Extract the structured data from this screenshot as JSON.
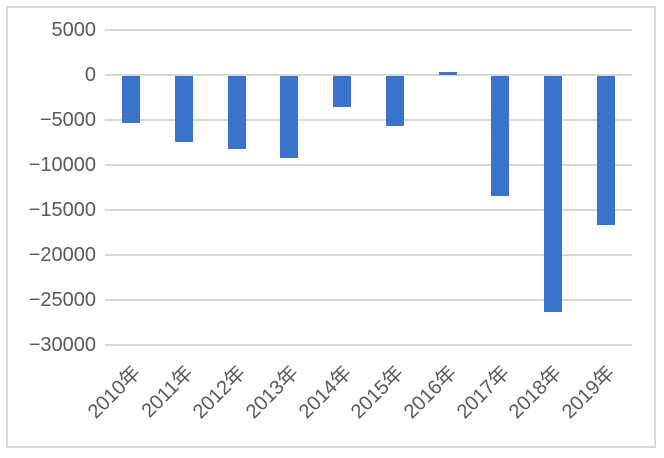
{
  "chart": {
    "title": "",
    "background_color": "#FFFFFF",
    "border_color": "#D9D9D9",
    "grid_color": "#D9D9D9",
    "axis_label_color": "#595959",
    "bar_color": "#3B73CA"
  },
  "chart_data": {
    "type": "bar",
    "categories": [
      "2010年",
      "2011年",
      "2012年",
      "2013年",
      "2014年",
      "2015年",
      "2016年",
      "2017年",
      "2018年",
      "2019年"
    ],
    "values": [
      -5200,
      -7300,
      -8100,
      -9100,
      -3400,
      -5600,
      300,
      -13300,
      -26200,
      -16600
    ],
    "title": "",
    "xlabel": "",
    "ylabel": "",
    "ylim": [
      -30000,
      5000
    ],
    "yticks": [
      5000,
      0,
      -5000,
      -10000,
      -15000,
      -20000,
      -25000,
      -30000
    ],
    "grid": true,
    "legend": false,
    "x_tick_rotation_deg": 45,
    "bar_color": "#3B73CA"
  }
}
